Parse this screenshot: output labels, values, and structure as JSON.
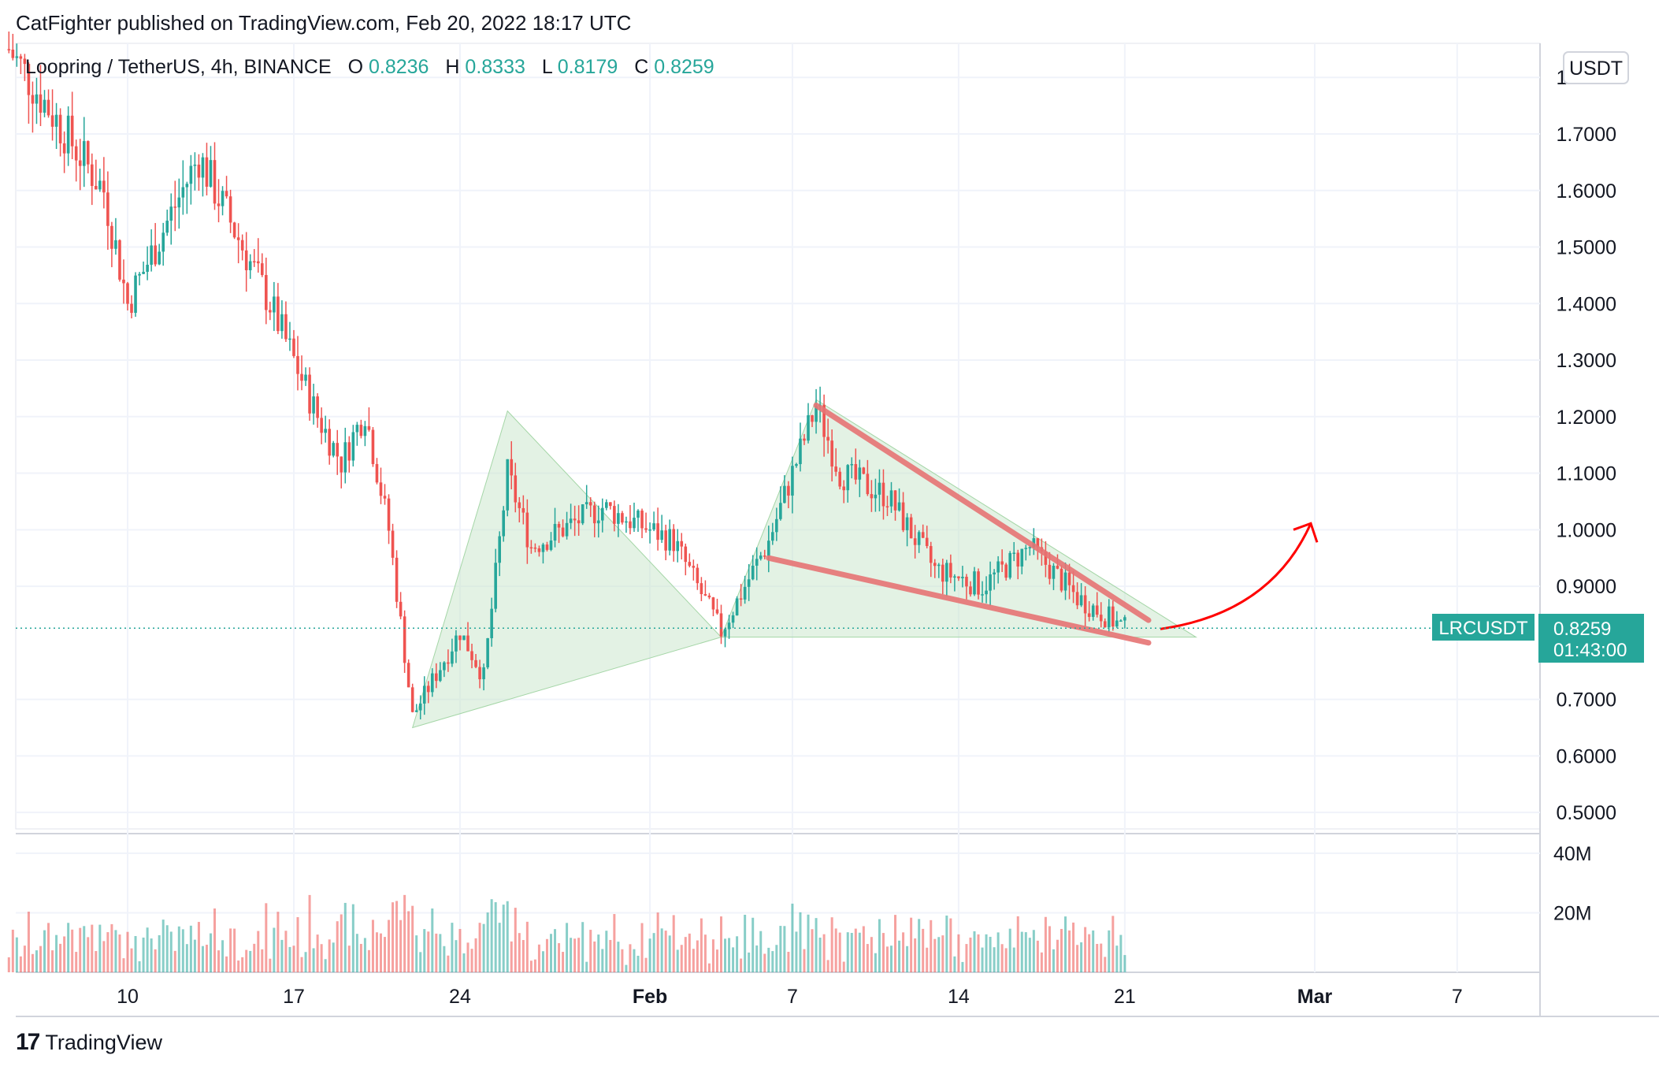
{
  "header": {
    "published": "CatFighter published on TradingView.com, Feb 20, 2022 18:17 UTC"
  },
  "legend": {
    "symbol": "Loopring / TetherUS, 4h, BINANCE",
    "o_label": "O",
    "o_value": "0.8236",
    "h_label": "H",
    "h_value": "0.8333",
    "l_label": "L",
    "l_value": "0.8179",
    "c_label": "C",
    "c_value": "0.8259"
  },
  "currency_button": "USDT",
  "price_tag": {
    "ticker": "LRCUSDT",
    "price": "0.8259",
    "countdown": "01:43:00"
  },
  "footer": {
    "brand": "TradingView",
    "logo": "17"
  },
  "colors": {
    "up": "#26a69a",
    "down": "#ef5350",
    "pattern_fill": "#c8e6c9",
    "trendline": "#e57373",
    "arrow": "#ff0000"
  },
  "chart_data": {
    "type": "candlestick",
    "symbol": "LRCUSDT",
    "interval": "4h",
    "y_axis_ticks": [
      "1.8000",
      "1.7000",
      "1.6000",
      "1.5000",
      "1.4000",
      "1.3000",
      "1.2000",
      "1.1000",
      "1.0000",
      "0.9000",
      "0.7000",
      "0.6000",
      "0.5000"
    ],
    "y_range": [
      0.47,
      1.87
    ],
    "volume_ticks": [
      "40M",
      "20M"
    ],
    "volume_range": [
      0,
      45
    ],
    "x_axis_ticks": [
      "10",
      "17",
      "24",
      "Feb",
      "7",
      "14",
      "21",
      "Mar",
      "7"
    ],
    "last_price": 0.8259,
    "key_points": [
      {
        "date": "Jan 5",
        "price": 1.85
      },
      {
        "date": "Jan 9",
        "price": 1.6
      },
      {
        "date": "Jan 10",
        "price": 1.4
      },
      {
        "date": "Jan 13",
        "price": 1.66
      },
      {
        "date": "Jan 16",
        "price": 1.4
      },
      {
        "date": "Jan 18",
        "price": 1.2
      },
      {
        "date": "Jan 19",
        "price": 1.12
      },
      {
        "date": "Jan 20",
        "price": 1.21
      },
      {
        "date": "Jan 21",
        "price": 1.0
      },
      {
        "date": "Jan 22",
        "price": 0.67
      },
      {
        "date": "Jan 24",
        "price": 0.82
      },
      {
        "date": "Jan 25",
        "price": 0.74
      },
      {
        "date": "Jan 26",
        "price": 1.1
      },
      {
        "date": "Jan 27",
        "price": 0.97
      },
      {
        "date": "Jan 30",
        "price": 1.04
      },
      {
        "date": "Feb 1",
        "price": 0.98
      },
      {
        "date": "Feb 3",
        "price": 0.82
      },
      {
        "date": "Feb 5",
        "price": 0.98
      },
      {
        "date": "Feb 7",
        "price": 1.22
      },
      {
        "date": "Feb 8",
        "price": 1.1
      },
      {
        "date": "Feb 10",
        "price": 1.06
      },
      {
        "date": "Feb 12",
        "price": 0.93
      },
      {
        "date": "Feb 14",
        "price": 0.9
      },
      {
        "date": "Feb 16",
        "price": 0.97
      },
      {
        "date": "Feb 18",
        "price": 0.88
      },
      {
        "date": "Feb 20",
        "price": 0.826
      }
    ],
    "annotations": [
      {
        "type": "triangle_pattern",
        "points": [
          {
            "date": "Jan 22",
            "price": 0.65
          },
          {
            "date": "Jan 26",
            "price": 1.21
          },
          {
            "date": "Feb 3",
            "price": 0.81
          }
        ]
      },
      {
        "type": "triangle_pattern",
        "points": [
          {
            "date": "Feb 3",
            "price": 0.81
          },
          {
            "date": "Feb 7",
            "price": 1.23
          },
          {
            "date": "Feb 23",
            "price": 0.81
          }
        ]
      },
      {
        "type": "trendline",
        "points": [
          {
            "date": "Feb 7",
            "price": 1.22
          },
          {
            "date": "Feb 21",
            "price": 0.84
          }
        ]
      },
      {
        "type": "trendline",
        "points": [
          {
            "date": "Feb 5",
            "price": 0.95
          },
          {
            "date": "Feb 21",
            "price": 0.8
          }
        ]
      },
      {
        "type": "curved_arrow",
        "from": {
          "date": "Feb 21",
          "price": 0.83
        },
        "to": {
          "date": "Feb 28",
          "price": 1.0
        }
      }
    ],
    "grid": true
  }
}
